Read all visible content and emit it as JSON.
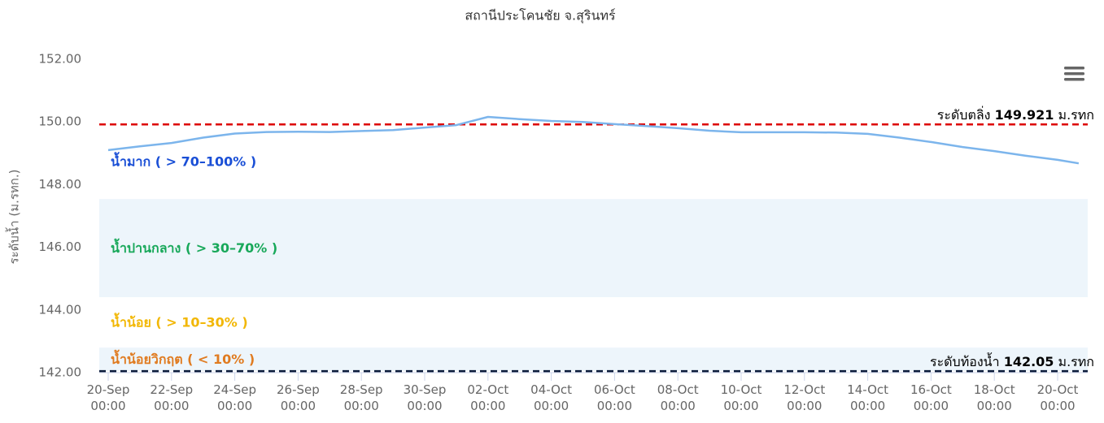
{
  "chart_data": {
    "type": "line",
    "title": "สถานีประโคนชัย จ.สุรินทร์",
    "y_label": "ระดับน้ำ (ม.รทก.)",
    "x": [
      "20-Sep 00:00",
      "21-Sep 00:00",
      "22-Sep 00:00",
      "23-Sep 00:00",
      "24-Sep 00:00",
      "25-Sep 00:00",
      "26-Sep 00:00",
      "27-Sep 00:00",
      "28-Sep 00:00",
      "29-Sep 00:00",
      "30-Sep 00:00",
      "01-Oct 00:00",
      "02-Oct 00:00",
      "03-Oct 00:00",
      "04-Oct 00:00",
      "05-Oct 00:00",
      "06-Oct 00:00",
      "07-Oct 00:00",
      "08-Oct 00:00",
      "09-Oct 00:00",
      "10-Oct 00:00",
      "11-Oct 00:00",
      "12-Oct 00:00",
      "13-Oct 00:00",
      "14-Oct 00:00",
      "15-Oct 00:00",
      "16-Oct 00:00",
      "17-Oct 00:00",
      "18-Oct 00:00",
      "19-Oct 00:00",
      "20-Oct 00:00",
      "20-Oct 16:00"
    ],
    "series": [
      {
        "color": "#7cb5ec",
        "values": [
          149.1,
          149.22,
          149.33,
          149.5,
          149.63,
          149.68,
          149.69,
          149.68,
          149.71,
          149.74,
          149.82,
          149.9,
          150.16,
          150.09,
          150.03,
          150.0,
          149.93,
          149.87,
          149.8,
          149.72,
          149.67,
          149.67,
          149.67,
          149.66,
          149.62,
          149.5,
          149.36,
          149.2,
          149.07,
          148.92,
          148.79,
          148.68
        ]
      }
    ],
    "ylim": [
      142,
      152
    ],
    "yticks": [
      {
        "value": 142,
        "label": "142.00"
      },
      {
        "value": 144,
        "label": "144.00"
      },
      {
        "value": 146,
        "label": "146.00"
      },
      {
        "value": 148,
        "label": "148.00"
      },
      {
        "value": 150,
        "label": "150.00"
      },
      {
        "value": 152,
        "label": "152.00"
      }
    ],
    "xticks": [
      "20-Sep 00:00",
      "22-Sep 00:00",
      "24-Sep 00:00",
      "26-Sep 00:00",
      "28-Sep 00:00",
      "30-Sep 00:00",
      "02-Oct 00:00",
      "04-Oct 00:00",
      "06-Oct 00:00",
      "08-Oct 00:00",
      "10-Oct 00:00",
      "12-Oct 00:00",
      "14-Oct 00:00",
      "16-Oct 00:00",
      "18-Oct 00:00",
      "20-Oct 00:00"
    ],
    "zones": [
      {
        "label": "น้ำมาก ( > 70–100% )",
        "color": "#1a4fd6",
        "fill": "#ffffff",
        "from": 147.54,
        "to": 149.921
      },
      {
        "label": "น้ำปานกลาง ( > 30–70% )",
        "color": "#18a85a",
        "fill": "#edf5fb",
        "from": 144.41,
        "to": 147.54
      },
      {
        "label": "น้ำน้อย ( > 10–30% )",
        "color": "#f2b705",
        "fill": "#ffffff",
        "from": 142.8,
        "to": 144.41
      },
      {
        "label": "น้ำน้อยวิกฤต ( < 10% )",
        "color": "#e07b20",
        "fill": "#edf5fb",
        "from": 142.05,
        "to": 142.8
      }
    ],
    "lines": [
      {
        "prefix": "ระดับตลิ่ง",
        "value": 149.921,
        "suffix": "ม.รทก",
        "color": "#dd0000"
      },
      {
        "prefix": "ระดับท้องน้ำ",
        "value": 142.05,
        "suffix": "ม.รทก",
        "color": "#0a1a3a"
      }
    ]
  }
}
